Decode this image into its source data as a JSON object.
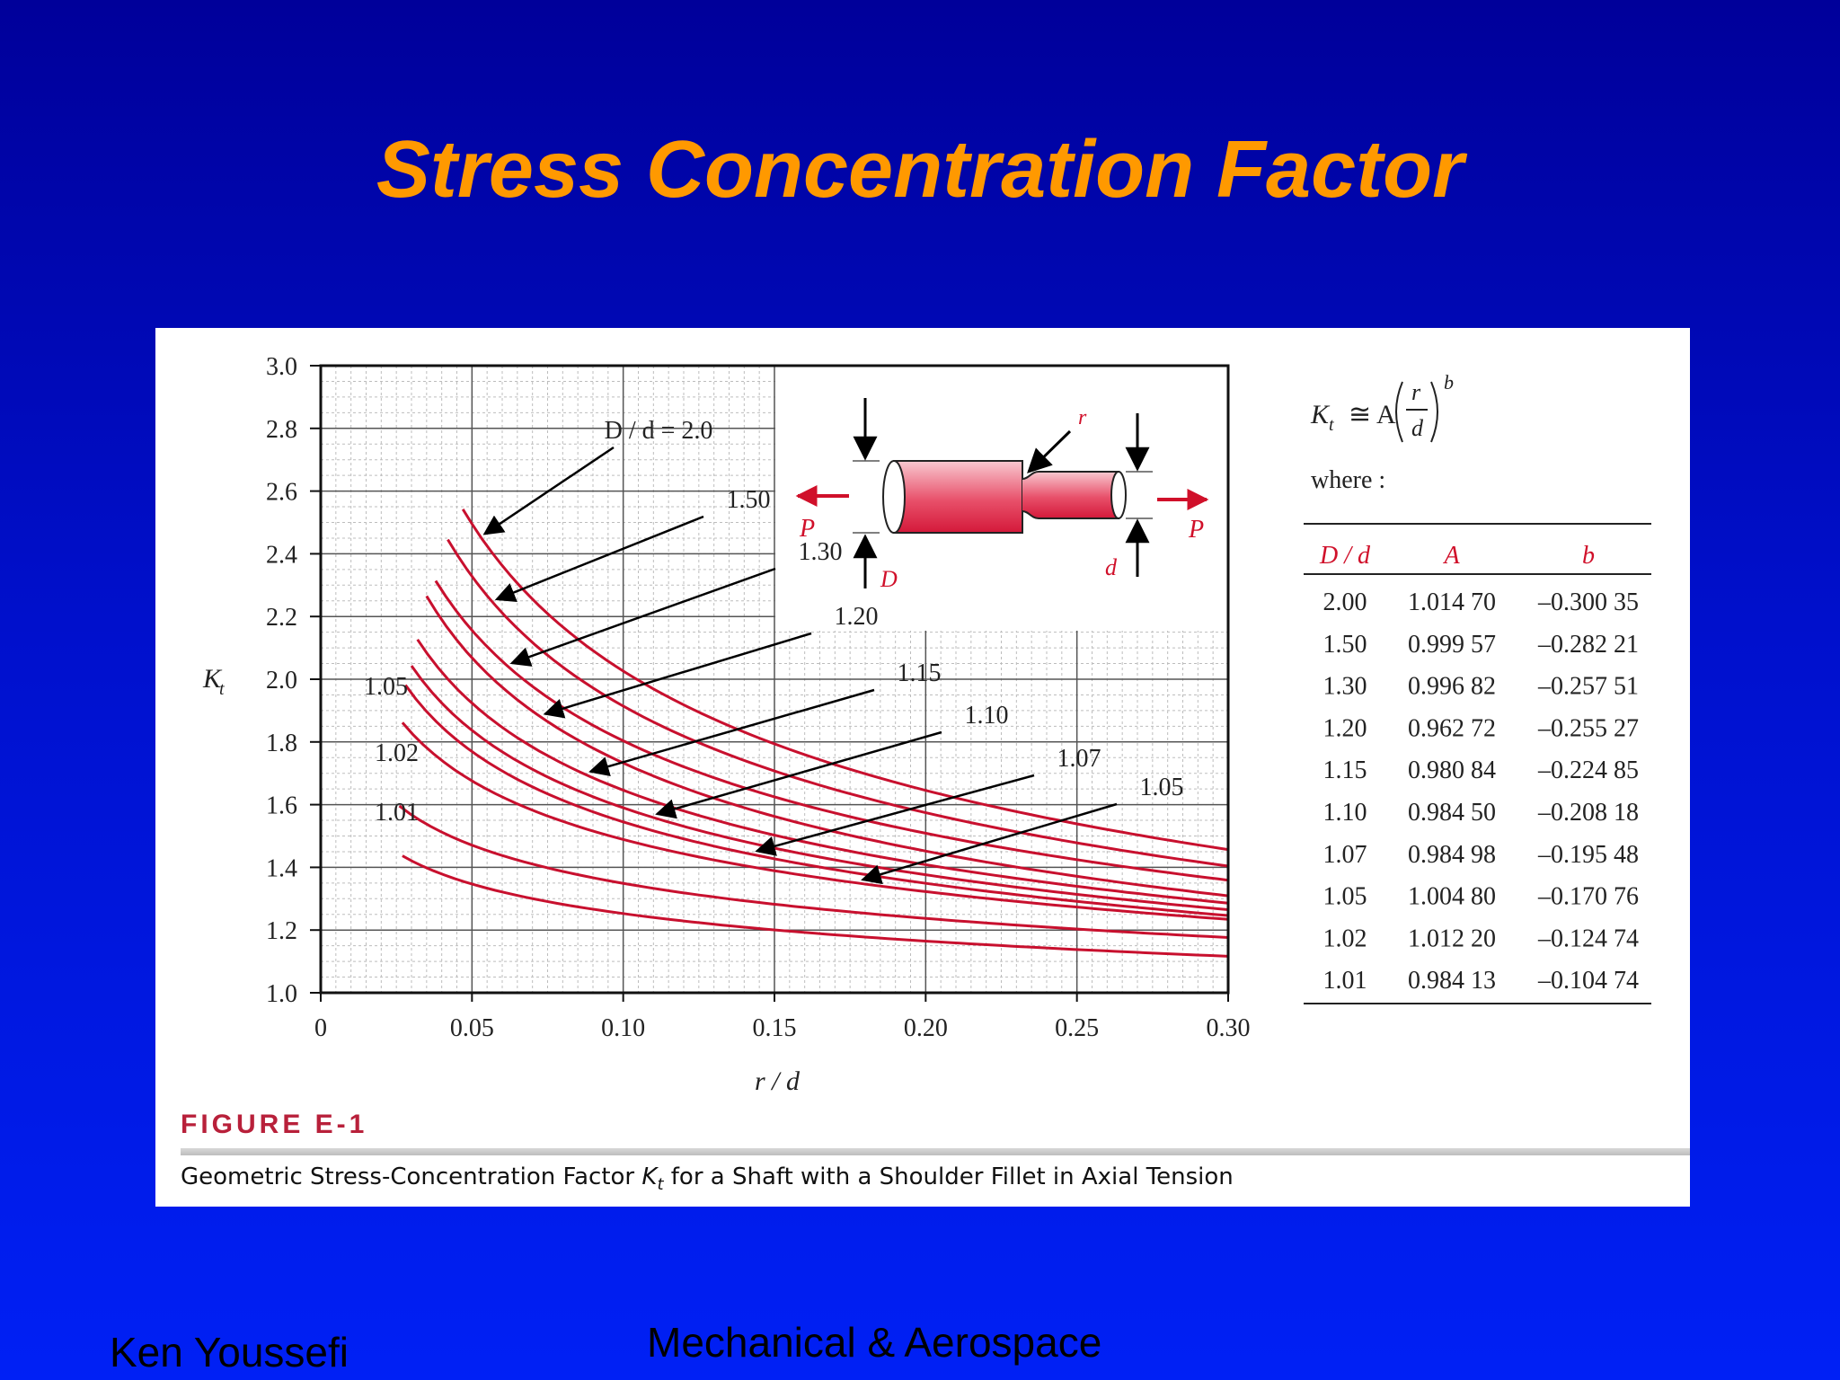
{
  "slide": {
    "title": "Stress Concentration Factor",
    "footer_left": "Ken Youssefi",
    "footer_center": "Mechanical & Aerospace"
  },
  "figure": {
    "label": "FIGURE E-1",
    "caption_pre": "Geometric Stress-Concentration Factor ",
    "caption_sym": "K",
    "caption_sub": "t",
    "caption_post": " for a Shaft with a Shoulder Fillet in Axial Tension"
  },
  "formula": {
    "lhs": "K",
    "lhs_sub": "t",
    "rel": "≅ A",
    "num": "r",
    "den": "d",
    "exp": "b",
    "where": "where :"
  },
  "inset": {
    "labels": {
      "P_left": "P",
      "P_right": "P",
      "D": "D",
      "d": "d",
      "r": "r"
    }
  },
  "colors": {
    "curve": "#c8102e",
    "title": "#ff9900",
    "caption_label": "#b8203a",
    "slide_bg_top": "#00009a",
    "slide_bg_bottom": "#0020f5"
  },
  "chart_data": {
    "type": "line",
    "title": "",
    "xlabel": "r / d",
    "ylabel": "K",
    "ylabel_sub": "t",
    "xlim": [
      0,
      0.3
    ],
    "ylim": [
      1.0,
      3.0
    ],
    "x_ticks": [
      "0",
      "0.05",
      "0.10",
      "0.15",
      "0.20",
      "0.25",
      "0.30"
    ],
    "y_ticks": [
      "1.0",
      "1.2",
      "1.4",
      "1.6",
      "1.8",
      "2.0",
      "2.2",
      "2.4",
      "2.6",
      "2.8",
      "3.0"
    ],
    "grid": true,
    "formula_table": {
      "headers": [
        "D / d",
        "A",
        "b"
      ],
      "rows": [
        [
          "2.00",
          "1.014 70",
          "–0.300 35"
        ],
        [
          "1.50",
          "0.999 57",
          "–0.282 21"
        ],
        [
          "1.30",
          "0.996 82",
          "–0.257 51"
        ],
        [
          "1.20",
          "0.962 72",
          "–0.255 27"
        ],
        [
          "1.15",
          "0.980 84",
          "–0.224 85"
        ],
        [
          "1.10",
          "0.984 50",
          "–0.208 18"
        ],
        [
          "1.07",
          "0.984 98",
          "–0.195 48"
        ],
        [
          "1.05",
          "1.004 80",
          "–0.170 76"
        ],
        [
          "1.02",
          "1.012 20",
          "–0.124 74"
        ],
        [
          "1.01",
          "0.984 13",
          "–0.104 74"
        ]
      ]
    },
    "series": [
      {
        "name": "2.0",
        "A": 1.0147,
        "b": -0.30035,
        "x_start": 0.047
      },
      {
        "name": "1.50",
        "A": 0.99957,
        "b": -0.28221,
        "x_start": 0.042
      },
      {
        "name": "1.30",
        "A": 0.99682,
        "b": -0.25751,
        "x_start": 0.038
      },
      {
        "name": "1.20",
        "A": 0.96272,
        "b": -0.25527,
        "x_start": 0.035
      },
      {
        "name": "1.15",
        "A": 0.98084,
        "b": -0.22485,
        "x_start": 0.032
      },
      {
        "name": "1.10",
        "A": 0.9845,
        "b": -0.20818,
        "x_start": 0.03
      },
      {
        "name": "1.07",
        "A": 0.98498,
        "b": -0.19548,
        "x_start": 0.028
      },
      {
        "name": "1.05",
        "A": 1.0048,
        "b": -0.17076,
        "x_start": 0.027
      },
      {
        "name": "1.02",
        "A": 1.0122,
        "b": -0.12474,
        "x_start": 0.026
      },
      {
        "name": "1.01",
        "A": 0.98413,
        "b": -0.10474,
        "x_start": 0.027
      }
    ],
    "curve_annotations": [
      {
        "text": "D / d = 2.0",
        "series": "2.0",
        "at_x": 0.053
      },
      {
        "text": "1.50",
        "series": "1.50",
        "at_x": 0.057
      },
      {
        "text": "1.30",
        "series": "1.30",
        "at_x": 0.062
      },
      {
        "text": "1.20",
        "series": "1.20",
        "at_x": 0.073
      },
      {
        "text": "1.15",
        "series": "1.15",
        "at_x": 0.088
      },
      {
        "text": "1.10",
        "series": "1.10",
        "at_x": 0.11
      },
      {
        "text": "1.07",
        "series": "1.07",
        "at_x": 0.143
      },
      {
        "text": "1.05",
        "series": "1.05",
        "at_x": 0.178
      }
    ],
    "left_annotations": [
      {
        "text": "1.05",
        "series": "1.05"
      },
      {
        "text": "1.02",
        "series": "1.02"
      },
      {
        "text": "1.01",
        "series": "1.01"
      }
    ]
  }
}
